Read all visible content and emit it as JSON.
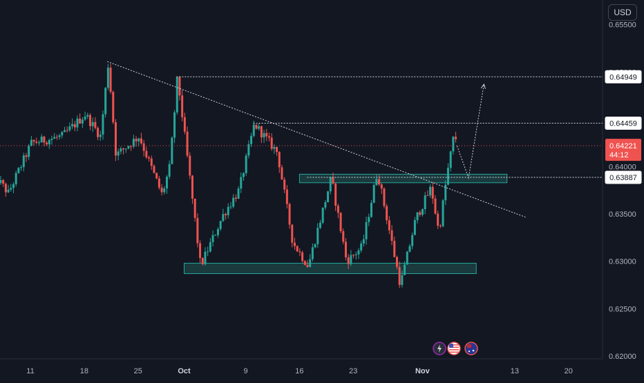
{
  "colors": {
    "background": "#131722",
    "up": "#26a69a",
    "down": "#ef5350",
    "axis_text": "#b2b5be",
    "line": "#d1d4dc",
    "zone_fill": "#1e4a4a",
    "zone_border": "#26a69a",
    "price_line": "#ef5350"
  },
  "currency": "USD",
  "price_label": {
    "value": "0.64221",
    "countdown": "44:12"
  },
  "level_labels": [
    "0.64949",
    "0.64459",
    "0.63887"
  ],
  "event_icons": [
    "lightning-icon",
    "us-flag-icon",
    "au-flag-icon"
  ],
  "chart_data": {
    "type": "candlestick",
    "instrument_currency": "USD",
    "x_ticks": [
      "11",
      "18",
      "25",
      "Oct",
      "9",
      "16",
      "23",
      "Nov",
      "13",
      "20"
    ],
    "y_ticks": [
      "0.65500",
      "0.65000",
      "0.64500",
      "0.64000",
      "0.63500",
      "0.63000",
      "0.62500",
      "0.62000"
    ],
    "ylim": [
      0.6197,
      0.6576
    ],
    "current_price": 0.64221,
    "countdown": "44:12",
    "key_points": [
      {
        "x": "Sep 6",
        "price": 0.6393
      },
      {
        "x": "Sep 8",
        "price": 0.6372
      },
      {
        "x": "Sep 11",
        "price": 0.6425
      },
      {
        "x": "Sep 15",
        "price": 0.6432
      },
      {
        "x": "Sep 18",
        "price": 0.6455
      },
      {
        "x": "Sep 20",
        "price": 0.6432
      },
      {
        "x": "Sep 21",
        "price": 0.651
      },
      {
        "x": "Sep 22",
        "price": 0.6412
      },
      {
        "x": "Sep 25",
        "price": 0.6432
      },
      {
        "x": "Sep 28",
        "price": 0.637
      },
      {
        "x": "Sep 29",
        "price": 0.64
      },
      {
        "x": "Sep 30",
        "price": 0.6495
      },
      {
        "x": "Oct 3",
        "price": 0.6295
      },
      {
        "x": "Oct 6",
        "price": 0.635
      },
      {
        "x": "Oct 8",
        "price": 0.6375
      },
      {
        "x": "Oct 10",
        "price": 0.6445
      },
      {
        "x": "Oct 13",
        "price": 0.6415
      },
      {
        "x": "Oct 15",
        "price": 0.632
      },
      {
        "x": "Oct 17",
        "price": 0.6295
      },
      {
        "x": "Oct 20",
        "price": 0.6388
      },
      {
        "x": "Oct 22",
        "price": 0.63
      },
      {
        "x": "Oct 24",
        "price": 0.6315
      },
      {
        "x": "Oct 26",
        "price": 0.6395
      },
      {
        "x": "Oct 29",
        "price": 0.6275
      },
      {
        "x": "Oct 31",
        "price": 0.6345
      },
      {
        "x": "Nov 2",
        "price": 0.6378
      },
      {
        "x": "Nov 3",
        "price": 0.633
      },
      {
        "x": "Nov 4",
        "price": 0.6388
      },
      {
        "x": "Nov 5",
        "price": 0.6435
      },
      {
        "x": "Nov 5.5",
        "price": 0.6422
      }
    ],
    "horizontal_levels": [
      0.64949,
      0.64459,
      0.63887
    ],
    "zones": [
      {
        "name": "resistance-zone",
        "x_start": "Oct 16",
        "x_end": "Nov 12",
        "price_low": 0.6383,
        "price_high": 0.6392
      },
      {
        "name": "support-zone",
        "x_start": "Oct 1",
        "x_end": "Nov 8",
        "price_low": 0.6287,
        "price_high": 0.6298
      }
    ],
    "trendline": {
      "from": {
        "x": "Sep 21",
        "price": 0.6511
      },
      "to": {
        "x": "Nov 9",
        "price": 0.6354
      }
    },
    "projection": [
      {
        "x": "Nov 5.5",
        "price": 0.6422
      },
      {
        "x": "Nov 7",
        "price": 0.6388
      },
      {
        "x": "Nov 9",
        "price": 0.6487
      }
    ],
    "grid": false
  }
}
